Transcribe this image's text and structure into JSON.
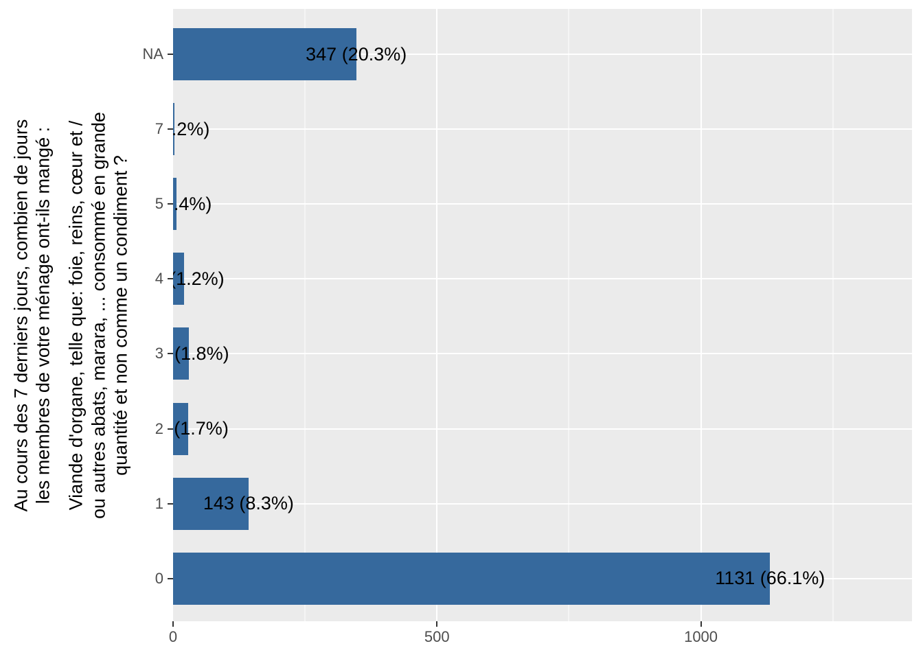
{
  "y_axis_title": {
    "question": "Au cours des 7 derniers jours, combien de jours\nles membres de votre ménage ont-ils mangé :",
    "item": "Viande d'organe, telle que: foie, reins, cœur et /\nou autres abats, marara, ... consommé en grande\nquantité et non comme un condiment ?"
  },
  "chart_data": {
    "type": "bar",
    "orientation": "horizontal",
    "title": "",
    "xlabel": "",
    "categories": [
      "NA",
      "7",
      "5",
      "4",
      "3",
      "2",
      "1",
      "0"
    ],
    "values": [
      347,
      3,
      7,
      21,
      30,
      29,
      143,
      1131
    ],
    "percentages": [
      20.3,
      0.2,
      0.4,
      1.2,
      1.8,
      1.7,
      8.3,
      66.1
    ],
    "bar_labels": [
      "347 (20.3%)",
      "3 (0.2%)",
      "7 (0.4%)",
      "21 (1.2%)",
      "30 (1.8%)",
      "29 (1.7%)",
      "143 (8.3%)",
      "1131 (66.1%)"
    ],
    "xlim": [
      0,
      1400
    ],
    "x_major_ticks": [
      0,
      500,
      1000
    ],
    "x_major_gridlines": [
      500,
      1000
    ],
    "x_minor_gridlines": [
      250,
      750,
      1250
    ],
    "grid": true,
    "legend": "none",
    "colors": {
      "bar": "#36699D",
      "panel_bg": "#EBEBEB",
      "grid": "#FFFFFF",
      "axis_text": "#4D4D4D",
      "label_text": "#000000"
    }
  }
}
